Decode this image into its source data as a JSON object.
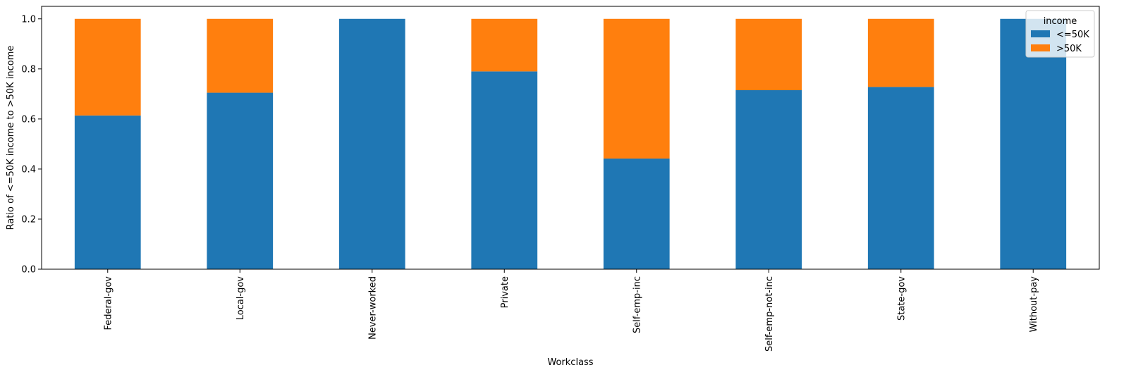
{
  "chart_data": {
    "type": "bar",
    "stacked": true,
    "title": "",
    "xlabel": "Workclass",
    "ylabel": "Ratio of <=50K income to >50K income",
    "categories": [
      "Federal-gov",
      "Local-gov",
      "Never-worked",
      "Private",
      "Self-emp-inc",
      "Self-emp-not-inc",
      "State-gov",
      "Without-pay"
    ],
    "series": [
      {
        "name": "<=50K",
        "color": "#1f77b4",
        "values": [
          0.614,
          0.705,
          1.0,
          0.79,
          0.442,
          0.715,
          0.728,
          1.0
        ]
      },
      {
        "name": ">50K",
        "color": "#ff7f0e",
        "values": [
          0.386,
          0.295,
          0.0,
          0.21,
          0.558,
          0.285,
          0.272,
          0.0
        ]
      }
    ],
    "ylim": [
      0,
      1.05
    ],
    "yticks": [
      0.0,
      0.2,
      0.4,
      0.6,
      0.8,
      1.0
    ],
    "ytick_labels": [
      "0.0",
      "0.2",
      "0.4",
      "0.6",
      "0.8",
      "1.0"
    ],
    "grid": false,
    "legend": {
      "title": "income",
      "placement": "top-right"
    }
  }
}
